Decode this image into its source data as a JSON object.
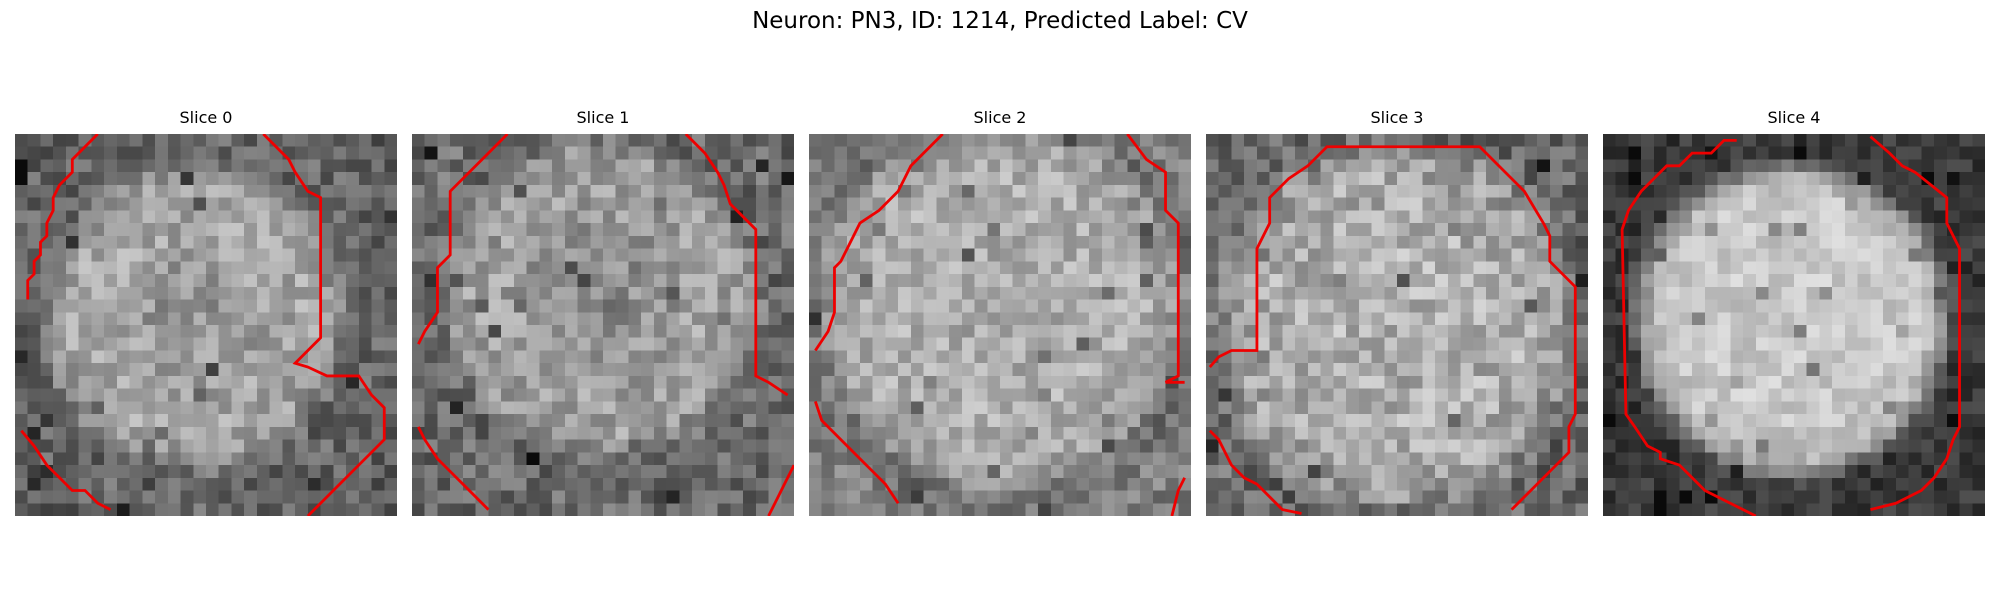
{
  "figure": {
    "title": "Neuron: PN3, ID: 1214, Predicted Label: CV"
  },
  "colors": {
    "contour": "#ee0000",
    "background": "#ffffff",
    "text": "#000000"
  },
  "panels": [
    {
      "title": "Slice 0",
      "content": "grayscale-microscopy-slice-with-red-contour"
    },
    {
      "title": "Slice 1",
      "content": "grayscale-microscopy-slice-with-red-contour"
    },
    {
      "title": "Slice 2",
      "content": "grayscale-microscopy-slice-with-red-contour"
    },
    {
      "title": "Slice 3",
      "content": "grayscale-microscopy-slice-with-red-contour"
    },
    {
      "title": "Slice 4",
      "content": "grayscale-microscopy-slice-with-red-contour"
    }
  ]
}
